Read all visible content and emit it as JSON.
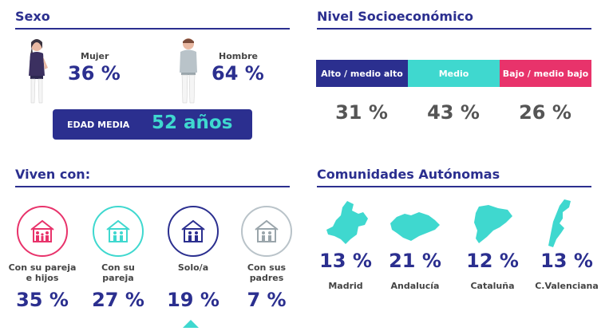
{
  "sexo": {
    "title": "Sexo",
    "mujer": {
      "label": "Mujer",
      "pct": "36 %"
    },
    "hombre": {
      "label": "Hombre",
      "pct": "64 %"
    },
    "edad": {
      "label": "EDAD MEDIA",
      "value": "52 años"
    }
  },
  "nivel": {
    "title": "Nivel Socioeconómico",
    "segments": [
      {
        "label": "Alto / medio alto",
        "pct": "31 %",
        "color": "#2b2f8f"
      },
      {
        "label": "Medio",
        "pct": "43 %",
        "color": "#3fd8cf"
      },
      {
        "label": "Bajo / medio bajo",
        "pct": "26 %",
        "color": "#e8336b"
      }
    ]
  },
  "viven": {
    "title": "Viven con:",
    "items": [
      {
        "label1": "Con su pareja",
        "label2": "e hijos",
        "pct": "35 %",
        "color": "#e8336b",
        "icon": "family-house-icon"
      },
      {
        "label1": "Con su",
        "label2": "pareja",
        "pct": "27 %",
        "color": "#3fd8cf",
        "icon": "couple-house-icon"
      },
      {
        "label1": "Solo/a",
        "label2": "",
        "pct": "19 %",
        "color": "#2b2f8f",
        "icon": "single-house-icon"
      },
      {
        "label1": "Con sus",
        "label2": "padres",
        "pct": "7 %",
        "color": "#b9c3c9",
        "icon": "parents-house-icon"
      }
    ]
  },
  "comunidades": {
    "title": "Comunidades Autónomas",
    "items": [
      {
        "name": "Madrid",
        "pct": "13 %"
      },
      {
        "name": "Andalucía",
        "pct": "21 %"
      },
      {
        "name": "Cataluña",
        "pct": "12 %"
      },
      {
        "name": "C.Valenciana",
        "pct": "13 %"
      }
    ],
    "map_color": "#3fd8cf"
  }
}
